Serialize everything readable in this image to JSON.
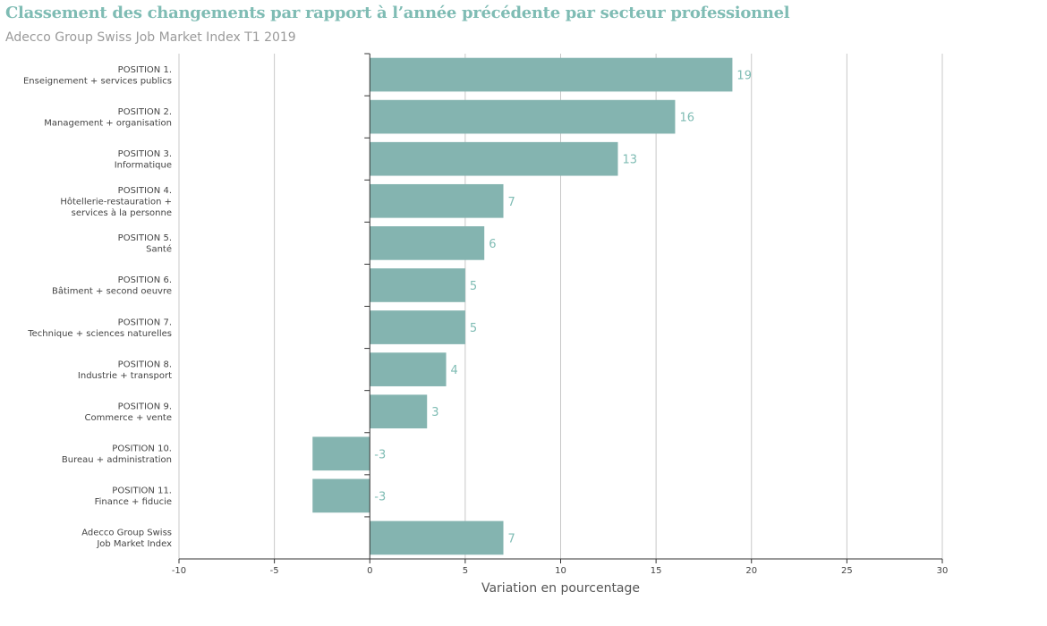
{
  "chart_data": {
    "type": "bar",
    "orientation": "horizontal",
    "title": "Classement des changements par rapport à l’année précédente par secteur professionnel",
    "subtitle": "Adecco Group Swiss Job Market Index T1 2019",
    "xlabel": "Variation en pourcentage",
    "ylabel": "",
    "xlim": [
      -10,
      30
    ],
    "xticks": [
      "-10",
      "-5",
      "0",
      "5",
      "10",
      "15",
      "20",
      "25",
      "30"
    ],
    "grid": "vertical",
    "bar_color": "#84b4b0",
    "label_color": "#7fbcb4",
    "categories": [
      [
        "POSITION 1.",
        "Enseignement + services publics"
      ],
      [
        "POSITION 2.",
        "Management + organisation"
      ],
      [
        "POSITION 3.",
        "Informatique"
      ],
      [
        "POSITION 4.",
        "Hôtellerie-restauration +",
        "services à la personne"
      ],
      [
        "POSITION 5.",
        "Santé"
      ],
      [
        "POSITION 6.",
        "Bâtiment + second oeuvre"
      ],
      [
        "POSITION 7.",
        "Technique + sciences naturelles"
      ],
      [
        "POSITION 8.",
        "Industrie + transport"
      ],
      [
        "POSITION 9.",
        "Commerce + vente"
      ],
      [
        "POSITION 10.",
        "Bureau + administration"
      ],
      [
        "POSITION 11.",
        "Finance + fiducie"
      ],
      [
        "Adecco Group Swiss",
        "Job Market Index"
      ]
    ],
    "values": [
      19,
      16,
      13,
      7,
      6,
      5,
      5,
      4,
      3,
      -3,
      -3,
      7
    ]
  }
}
